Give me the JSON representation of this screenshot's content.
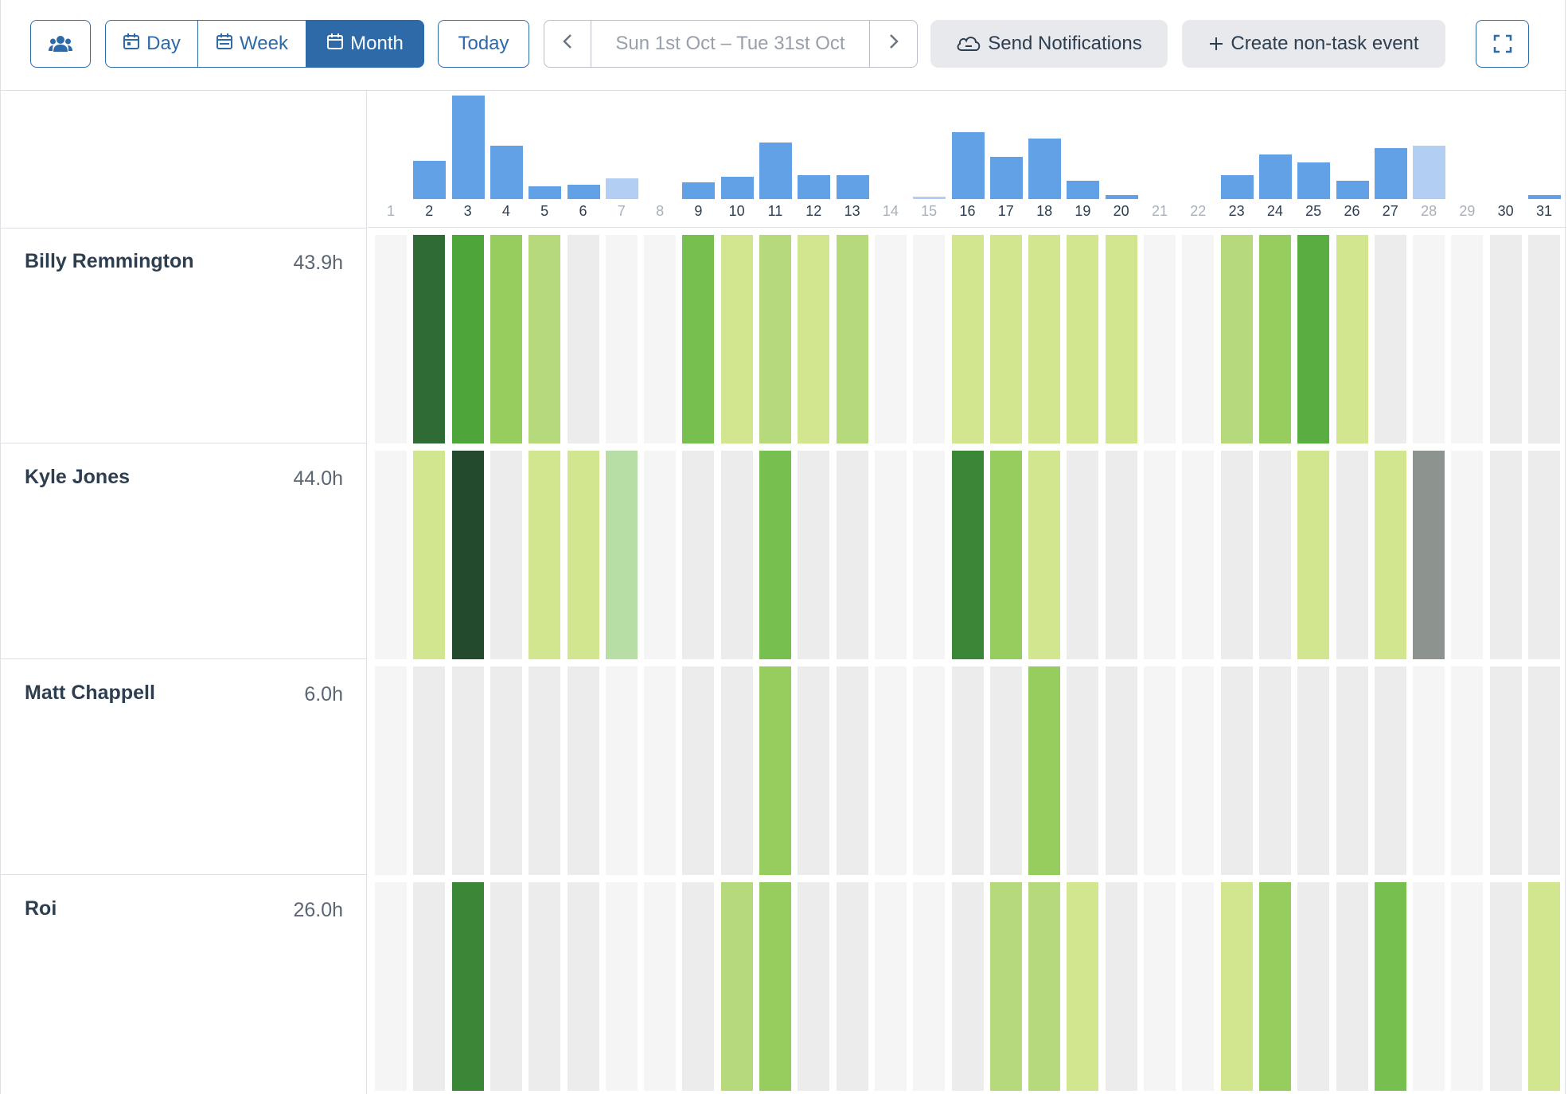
{
  "toolbar": {
    "views": [
      {
        "label": "Day",
        "active": false
      },
      {
        "label": "Week",
        "active": false
      },
      {
        "label": "Month",
        "active": true
      }
    ],
    "today_label": "Today",
    "date_range": "Sun 1st Oct – Tue 31st Oct",
    "send_notifications_label": "Send Notifications",
    "create_event_label": "Create non-task event"
  },
  "colors": {
    "accent": "#2f6aa8",
    "bar": "#62a1e6",
    "bar_light": "#b2cff3",
    "weekend_cell": "#f5f5f5",
    "empty_cell": "#ececec",
    "g1": "#d2e58f",
    "g2": "#b6d97b",
    "g3": "#97cc5f",
    "g4": "#77c04f",
    "g5": "#59ad41",
    "g6": "#4ea63b",
    "g7": "#3b8738",
    "g8": "#2f6b34",
    "g9": "#234a2c",
    "light_green": "#b6dea5",
    "grey": "#8d938f"
  },
  "days": [
    1,
    2,
    3,
    4,
    5,
    6,
    7,
    8,
    9,
    10,
    11,
    12,
    13,
    14,
    15,
    16,
    17,
    18,
    19,
    20,
    21,
    22,
    23,
    24,
    25,
    26,
    27,
    28,
    29,
    30,
    31
  ],
  "weekend_days": [
    1,
    7,
    8,
    14,
    15,
    21,
    22,
    28,
    29
  ],
  "daily_load": [
    0,
    29,
    79,
    41,
    10,
    11,
    16,
    0,
    13,
    17,
    43,
    18,
    18,
    0,
    1,
    51,
    32,
    46,
    14,
    3,
    0,
    0,
    18,
    34,
    28,
    14,
    39,
    41,
    0,
    0,
    3
  ],
  "light_bars": [
    7,
    15,
    28
  ],
  "people": [
    {
      "name": "Billy Remmington",
      "hours": "43.9h",
      "days": [
        "",
        "g8",
        "g6",
        "g3",
        "g2",
        "",
        "",
        "",
        "g4",
        "g1",
        "g2",
        "g1",
        "g2",
        "",
        "",
        "g1",
        "g1",
        "g1",
        "g1",
        "g1",
        "",
        "",
        "g2",
        "g3",
        "g5",
        "g1",
        "",
        "",
        "",
        "",
        ""
      ]
    },
    {
      "name": "Kyle Jones",
      "hours": "44.0h",
      "days": [
        "",
        "g1",
        "g9",
        "",
        "g1",
        "g1",
        "light_green",
        "",
        "",
        "",
        "g4",
        "",
        "",
        "",
        "",
        "g7",
        "g3",
        "g1",
        "",
        "",
        "",
        "",
        "",
        "",
        "g1",
        "",
        "g1",
        "grey",
        "",
        "",
        ""
      ]
    },
    {
      "name": "Matt Chappell",
      "hours": "6.0h",
      "days": [
        "",
        "",
        "",
        "",
        "",
        "",
        "",
        "",
        "",
        "",
        "g3",
        "",
        "",
        "",
        "",
        "",
        "",
        "g3",
        "",
        "",
        "",
        "",
        "",
        "",
        "",
        "",
        "",
        "",
        "",
        "",
        ""
      ]
    },
    {
      "name": "Roi",
      "hours": "26.0h",
      "days": [
        "",
        "",
        "g7",
        "",
        "",
        "",
        "",
        "",
        "",
        "g2",
        "g3",
        "",
        "",
        "",
        "",
        "",
        "g2",
        "g2",
        "g1",
        "",
        "",
        "",
        "g1",
        "g3",
        "",
        "",
        "g4",
        "",
        "",
        "",
        "g1"
      ]
    }
  ]
}
